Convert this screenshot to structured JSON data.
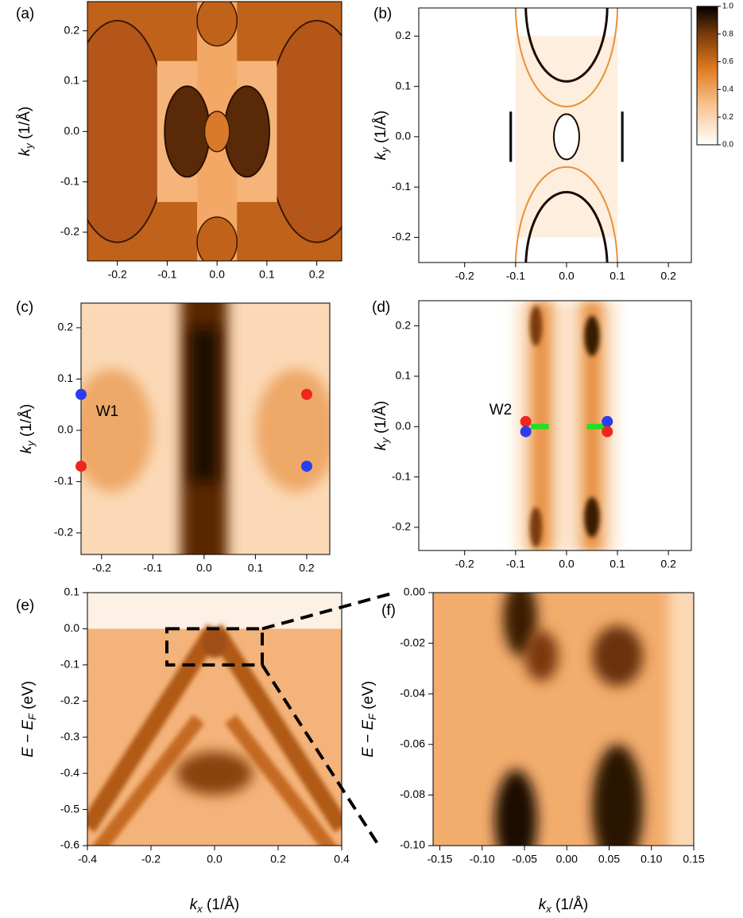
{
  "chart_data": [
    {
      "type": "heatmap",
      "label": "(a)",
      "xlim": [
        -0.26,
        0.25
      ],
      "ylim": [
        -0.257,
        0.258
      ],
      "xticks": [
        -0.2,
        -0.1,
        {
          "value": 0,
          "label": "0.0"
        },
        0.1,
        0.2
      ],
      "yticks": [
        0.2,
        0.1,
        {
          "value": 0,
          "label": "0.0"
        },
        -0.1,
        -0.2
      ],
      "ylabel": [
        "k",
        "y",
        " (1/Å)"
      ]
    },
    {
      "type": "heatmap",
      "label": "(b)",
      "xlim": [
        -0.29,
        0.245
      ],
      "ylim": [
        -0.25,
        0.256
      ],
      "xticks": [
        -0.2,
        -0.1,
        {
          "value": 0,
          "label": "0.0"
        },
        0.1,
        0.2
      ],
      "yticks": [
        0.2,
        0.1,
        {
          "value": 0,
          "label": "0.0"
        },
        -0.1,
        -0.2
      ],
      "ylabel": [
        "k",
        "y",
        " (1/Å)"
      ],
      "colorbar": {
        "lim": [
          0,
          1
        ],
        "ticks": [
          {
            "value": 1,
            "label": "1.0"
          },
          0.8,
          0.6,
          0.4,
          0.2,
          {
            "value": 0,
            "label": "0.0"
          }
        ]
      }
    },
    {
      "type": "heatmap",
      "label": "(c)",
      "xlim": [
        -0.24,
        0.245
      ],
      "ylim": [
        -0.242,
        0.248
      ],
      "xticks": [
        -0.2,
        -0.1,
        {
          "value": 0,
          "label": "0.0"
        },
        0.1,
        0.2
      ],
      "yticks": [
        0.2,
        0.1,
        {
          "value": 0,
          "label": "0.0"
        },
        -0.1,
        -0.2
      ],
      "ylabel": [
        "k",
        "y",
        " (1/Å)"
      ],
      "points": {
        "x": [
          -0.24,
          -0.24,
          0.2,
          0.2
        ],
        "y": [
          0.07,
          -0.07,
          0.07,
          -0.07
        ],
        "colors": [
          "#2a3df0",
          "#f0261e",
          "#f0261e",
          "#2a3df0"
        ]
      },
      "annotation": "W1"
    },
    {
      "type": "heatmap",
      "label": "(d)",
      "xlim": [
        -0.29,
        0.245
      ],
      "ylim": [
        -0.246,
        0.25
      ],
      "xticks": [
        -0.2,
        -0.1,
        {
          "value": 0,
          "label": "0.0"
        },
        0.1,
        0.2
      ],
      "yticks": [
        0.2,
        0.1,
        {
          "value": 0,
          "label": "0.0"
        },
        -0.1,
        -0.2
      ],
      "ylabel": [
        "k",
        "y",
        " (1/Å)"
      ],
      "points": {
        "x": [
          -0.08,
          -0.08,
          0.08,
          0.08
        ],
        "y": [
          0.01,
          -0.01,
          0.01,
          -0.01
        ],
        "colors": [
          "#f0261e",
          "#2a3df0",
          "#2a3df0",
          "#f0261e"
        ]
      },
      "segments": {
        "x1": [
          -0.07,
          0.04
        ],
        "x2": [
          -0.035,
          0.075
        ],
        "y": [
          0,
          0
        ],
        "color": "#22e022"
      },
      "annotation": "W2"
    },
    {
      "type": "heatmap",
      "label": "(e)",
      "xlim": [
        -0.4,
        0.4
      ],
      "ylim": [
        -0.6,
        0.1
      ],
      "xticks": [
        -0.4,
        -0.2,
        {
          "value": 0,
          "label": "0.0"
        },
        0.2,
        0.4
      ],
      "yticks": [
        0.1,
        {
          "value": 0,
          "label": "0.0"
        },
        -0.1,
        -0.2,
        -0.3,
        -0.4,
        -0.5,
        -0.6
      ],
      "ylabel": [
        "E − E",
        "F",
        " (eV)"
      ],
      "xlabel": [
        "k",
        "x",
        " (1/Å)"
      ],
      "region": {
        "x": [
          -0.15,
          0.15
        ],
        "y": [
          -0.1,
          0
        ]
      }
    },
    {
      "type": "heatmap",
      "label": "(f)",
      "xlim": [
        -0.158,
        0.15
      ],
      "ylim": [
        -0.1,
        0
      ],
      "xticks": [
        -0.15,
        {
          "value": -0.1,
          "label": "-0.10"
        },
        -0.05,
        {
          "value": 0,
          "label": "0.00"
        },
        0.05,
        {
          "value": 0.1,
          "label": "0.10"
        },
        0.15
      ],
      "yticks": [
        {
          "value": 0,
          "label": "0.00"
        },
        -0.02,
        -0.04,
        -0.06,
        -0.08,
        {
          "value": -0.1,
          "label": "-0.10"
        }
      ],
      "ylabel": [
        "E − E",
        "F",
        " (eV)"
      ],
      "xlabel": [
        "k",
        "x",
        " (1/Å)"
      ]
    }
  ]
}
